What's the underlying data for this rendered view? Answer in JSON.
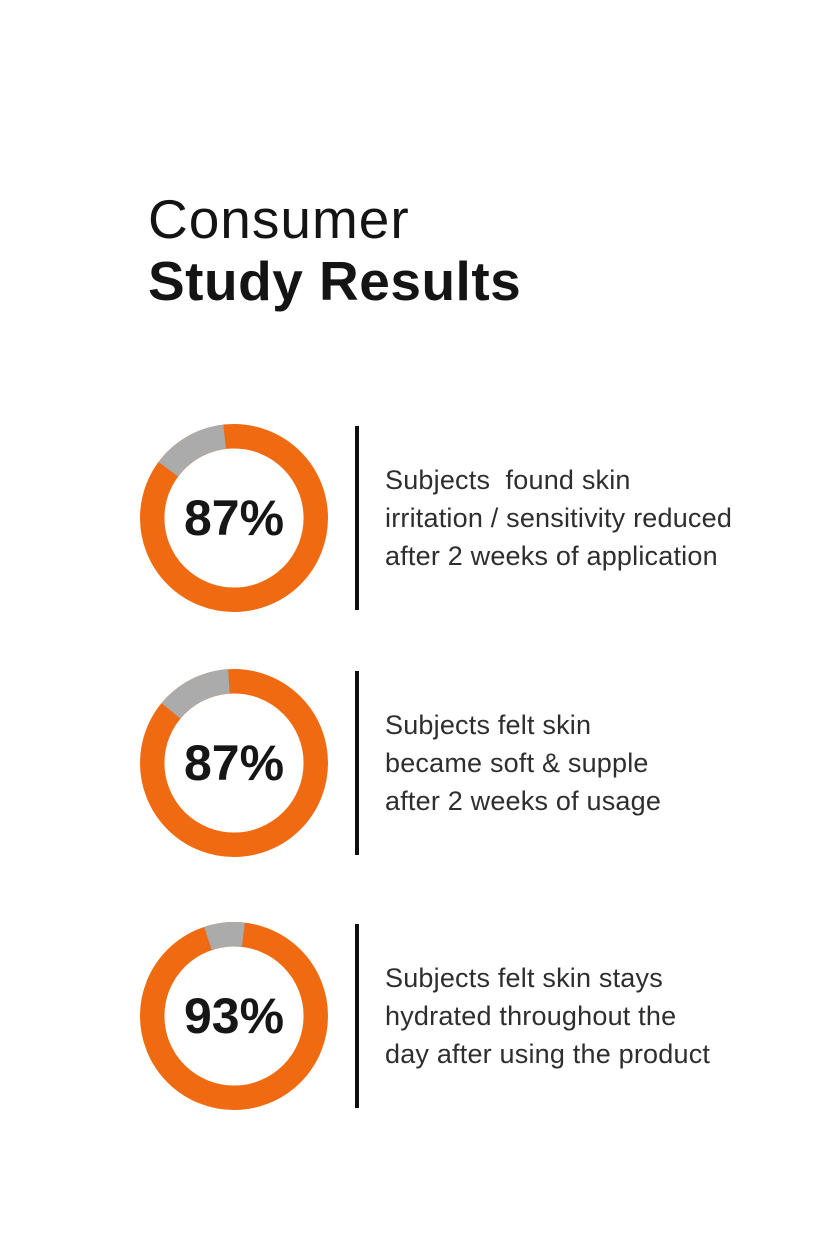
{
  "page": {
    "background": "#ffffff"
  },
  "header": {
    "title_line1": "Consumer",
    "title_line2": "Study Results"
  },
  "colors": {
    "title_text": "#141414",
    "percent_text": "#161616",
    "body_text": "#2e2e2e",
    "divider": "#0e0e0e",
    "ring_orange": "#EF6A10",
    "ring_gray": "#ABABAB"
  },
  "chart_data": {
    "type": "pie",
    "subtype": "donut-progress",
    "title": "Consumer Study Results",
    "unit": "%",
    "legend_position": "right-of-each-donut",
    "colors": {
      "filled": "#EF6A10",
      "remainder": "#ABABAB"
    },
    "series": [
      {
        "value": 87,
        "percent_label": "87%",
        "remainder_mid_angle": -30,
        "label_lines": [
          "Subjects  found skin",
          "irritation / sensitivity reduced",
          "after 2 weeks of application"
        ]
      },
      {
        "value": 87,
        "percent_label": "87%",
        "remainder_mid_angle": -27,
        "label_lines": [
          "Subjects felt skin",
          "became soft & supple",
          "after 2 weeks of usage"
        ]
      },
      {
        "value": 93,
        "percent_label": "93%",
        "remainder_mid_angle": -6,
        "label_lines": [
          "Subjects felt skin stays",
          "hydrated throughout the",
          "day after using the product"
        ]
      }
    ]
  }
}
